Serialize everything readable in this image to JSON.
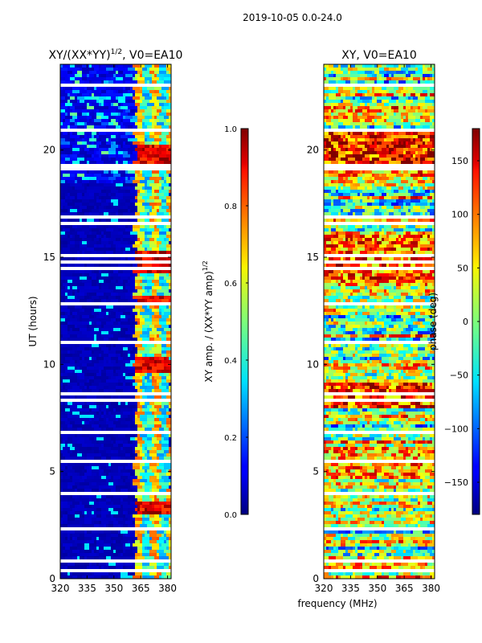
{
  "suptitle": "2019-10-05 0.0-24.0",
  "chart_data": [
    {
      "type": "heatmap",
      "title": "XY/(XX*YY)^{1/2}, V0=EA10",
      "title_main": "XY/(XX*YY)",
      "title_exp": "1/2",
      "title_rest": ", V0=EA10",
      "xlabel": "",
      "ylabel": "UT (hours)",
      "xlim": [
        320,
        382
      ],
      "ylim": [
        0,
        24
      ],
      "xticks": [
        320,
        335,
        350,
        365,
        380
      ],
      "yticks": [
        0,
        5,
        10,
        15,
        20
      ],
      "colorbar": {
        "label": "XY amp. / (XX*YY amp)^{1/2}",
        "label_main": "XY amp. / (XX*YY amp)",
        "label_exp": "1/2",
        "range": [
          0.0,
          1.0
        ],
        "ticks": [
          "0.0",
          "0.2",
          "0.4",
          "0.6",
          "0.8",
          "1.0"
        ],
        "tick_values": [
          0.0,
          0.2,
          0.4,
          0.6,
          0.8,
          1.0
        ]
      },
      "colormap": "jet"
    },
    {
      "type": "heatmap",
      "title": "XY, V0=EA10",
      "xlabel": "frequency (MHz)",
      "ylabel": "",
      "xlim": [
        320,
        382
      ],
      "ylim": [
        0,
        24
      ],
      "xticks": [
        320,
        335,
        350,
        365,
        380
      ],
      "yticks": [
        0,
        5,
        10,
        15,
        20
      ],
      "colorbar": {
        "label": "phase (deg)",
        "range": [
          -180,
          180
        ],
        "ticks": [
          "150",
          "100",
          "50",
          "0",
          "−50",
          "−100",
          "−150"
        ],
        "tick_values": [
          150,
          100,
          50,
          0,
          -50,
          -100,
          -150
        ]
      },
      "colormap": "jet"
    }
  ]
}
